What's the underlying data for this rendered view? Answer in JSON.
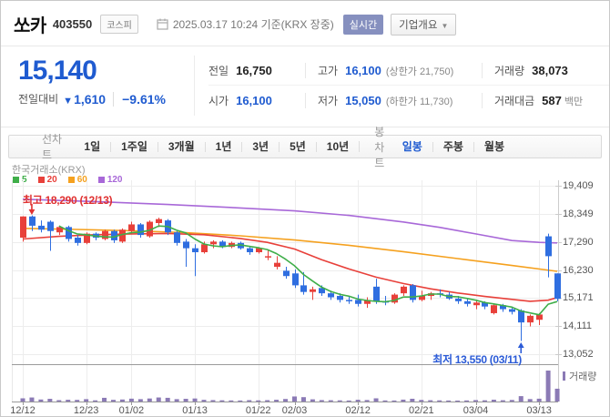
{
  "theme": {
    "accent_blue": "#1f5bd0",
    "badge_blue": "#8690bf",
    "anno_red": "#e03131",
    "anno_blue": "#2b5bd7"
  },
  "header": {
    "title": "쏘카",
    "code": "403550",
    "market_badge": "코스피",
    "timestamp": "2025.03.17 10:24",
    "timestamp_suffix": "기준(KRX 장중)",
    "realtime_badge": "실시간",
    "overview_button": "기업개요",
    "overview_arrow": "▼"
  },
  "quote": {
    "price": "15,140",
    "change_label": "전일대비",
    "change_arrow": "▼",
    "change_value": "1,610",
    "change_percent": "−9.61%"
  },
  "info": {
    "rows": [
      [
        {
          "label": "전일",
          "value": "16,750",
          "value_class": "dark"
        },
        {
          "label": "고가",
          "value": "16,100",
          "value_class": "blue",
          "extra": "(상한가 21,750)"
        },
        {
          "label": "거래량",
          "value": "38,073",
          "value_class": "dark"
        }
      ],
      [
        {
          "label": "시가",
          "value": "16,100",
          "value_class": "blue"
        },
        {
          "label": "저가",
          "value": "15,050",
          "value_class": "blue",
          "extra": "(하한가 11,730)"
        },
        {
          "label": "거래대금",
          "value": "587",
          "value_class": "dark",
          "unit": "백만"
        }
      ]
    ]
  },
  "toolbar": {
    "left_label": "선차트",
    "left_items": [
      "1일",
      "1주일",
      "3개월",
      "1년",
      "3년",
      "5년",
      "10년"
    ],
    "right_label": "봉차트",
    "right_items": [
      {
        "label": "일봉",
        "selected": true
      },
      {
        "label": "주봉",
        "selected": false
      },
      {
        "label": "월봉",
        "selected": false
      }
    ]
  },
  "chart_data": {
    "type": "candlestick",
    "source": "한국거래소(KRX)",
    "ma_legend": [
      {
        "label": "5",
        "color": "#3fae49"
      },
      {
        "label": "20",
        "color": "#e8403a"
      },
      {
        "label": "60",
        "color": "#f5a11f"
      },
      {
        "label": "120",
        "color": "#a868d8"
      }
    ],
    "ylim": [
      13052,
      19409
    ],
    "y_ticks": [
      {
        "label": "19,409",
        "value": 19409
      },
      {
        "label": "18,349",
        "value": 18349
      },
      {
        "label": "17,290",
        "value": 17290
      },
      {
        "label": "16,230",
        "value": 16230
      },
      {
        "label": "15,171",
        "value": 15171
      },
      {
        "label": "14,111",
        "value": 14111
      },
      {
        "label": "13,052",
        "value": 13052
      }
    ],
    "x_ticks": [
      {
        "label": "12/12",
        "candle_index": 0
      },
      {
        "label": "12/23",
        "candle_index": 7
      },
      {
        "label": "01/02",
        "candle_index": 12
      },
      {
        "label": "01/13",
        "candle_index": 19
      },
      {
        "label": "01/22",
        "candle_index": 26
      },
      {
        "label": "02/03",
        "candle_index": 30
      },
      {
        "label": "02/12",
        "candle_index": 37
      },
      {
        "label": "02/21",
        "candle_index": 44
      },
      {
        "label": "03/04",
        "candle_index": 50
      },
      {
        "label": "03/13",
        "candle_index": 57
      }
    ],
    "candles": [
      [
        "12/12",
        17450,
        18260,
        17300,
        18250,
        9500
      ],
      [
        "12/13",
        18250,
        18290,
        17700,
        17900,
        12000
      ],
      [
        "12/16",
        17900,
        18100,
        17650,
        17750,
        6000
      ],
      [
        "12/17",
        18050,
        18100,
        16950,
        17700,
        8000
      ],
      [
        "12/18",
        17650,
        17900,
        17550,
        17850,
        4000
      ],
      [
        "12/19",
        17850,
        17900,
        17300,
        17400,
        5200
      ],
      [
        "12/20",
        17450,
        17550,
        17150,
        17250,
        4800
      ],
      [
        "12/23",
        17250,
        17650,
        17200,
        17600,
        7000
      ],
      [
        "12/24",
        17600,
        17650,
        17350,
        17450,
        3500
      ],
      [
        "12/26",
        17400,
        17750,
        17350,
        17700,
        11000
      ],
      [
        "12/27",
        17700,
        17750,
        17250,
        17350,
        5000
      ],
      [
        "12/30",
        17300,
        17800,
        17250,
        17750,
        6000
      ],
      [
        "01/02",
        17700,
        18050,
        17600,
        17950,
        8500
      ],
      [
        "01/03",
        17950,
        18000,
        17450,
        17550,
        7000
      ],
      [
        "01/06",
        17500,
        18100,
        17450,
        18050,
        9000
      ],
      [
        "01/07",
        18000,
        18200,
        17850,
        18150,
        12000
      ],
      [
        "01/08",
        18100,
        18150,
        17550,
        17650,
        11000
      ],
      [
        "01/09",
        17650,
        17700,
        17150,
        17250,
        7000
      ],
      [
        "01/10",
        17300,
        17400,
        16350,
        17050,
        8000
      ],
      [
        "01/13",
        17050,
        17200,
        16000,
        16900,
        9000
      ],
      [
        "01/14",
        16900,
        17300,
        16850,
        17200,
        5000
      ],
      [
        "01/15",
        17200,
        17350,
        17050,
        17300,
        4200
      ],
      [
        "01/16",
        17300,
        17350,
        17050,
        17100,
        3600
      ],
      [
        "01/17",
        17100,
        17300,
        17050,
        17250,
        3200
      ],
      [
        "01/20",
        17250,
        17300,
        17000,
        17050,
        3000
      ],
      [
        "01/21",
        17050,
        17100,
        16800,
        16900,
        4000
      ],
      [
        "01/22",
        16900,
        17100,
        16850,
        17050,
        3400
      ],
      [
        "01/23",
        16700,
        17000,
        16600,
        16750,
        4000
      ],
      [
        "01/24",
        16350,
        16750,
        16250,
        16500,
        5200
      ],
      [
        "01/31",
        16200,
        16350,
        15900,
        16000,
        7500
      ],
      [
        "02/03",
        16100,
        16250,
        15550,
        15650,
        15000
      ],
      [
        "02/04",
        15650,
        16150,
        15300,
        15400,
        13000
      ],
      [
        "02/05",
        15400,
        15600,
        15100,
        15500,
        6500
      ],
      [
        "02/06",
        15550,
        15650,
        15250,
        15350,
        4200
      ],
      [
        "02/07",
        15350,
        15450,
        15100,
        15200,
        3800
      ],
      [
        "02/10",
        15250,
        15350,
        15000,
        15100,
        3400
      ],
      [
        "02/11",
        15100,
        15250,
        14950,
        15050,
        3000
      ],
      [
        "02/12",
        15100,
        15300,
        14850,
        14950,
        5200
      ],
      [
        "02/13",
        14950,
        15200,
        14800,
        15100,
        4400
      ],
      [
        "02/14",
        15600,
        15900,
        14950,
        15050,
        9500
      ],
      [
        "02/17",
        15050,
        15250,
        14900,
        15000,
        3200
      ],
      [
        "02/18",
        15000,
        15350,
        14950,
        15300,
        3000
      ],
      [
        "02/19",
        15350,
        15650,
        15250,
        15600,
        5600
      ],
      [
        "02/20",
        15650,
        15700,
        15000,
        15100,
        8200
      ],
      [
        "02/21",
        15100,
        15450,
        15050,
        15250,
        4600
      ],
      [
        "02/24",
        15250,
        15400,
        15100,
        15350,
        3800
      ],
      [
        "02/25",
        15350,
        15500,
        15200,
        15300,
        3400
      ],
      [
        "02/26",
        15300,
        15400,
        15100,
        15150,
        3000
      ],
      [
        "02/27",
        15150,
        15250,
        14950,
        15050,
        2800
      ],
      [
        "02/28",
        15050,
        15150,
        14850,
        14950,
        3200
      ],
      [
        "03/04",
        14900,
        15100,
        14750,
        15000,
        4200
      ],
      [
        "03/05",
        15000,
        15050,
        14750,
        14850,
        3600
      ],
      [
        "03/06",
        14600,
        14950,
        14550,
        14900,
        5400
      ],
      [
        "03/07",
        14900,
        14950,
        14650,
        14750,
        3800
      ],
      [
        "03/10",
        14750,
        14850,
        14550,
        14650,
        4600
      ],
      [
        "03/11",
        14700,
        14750,
        13550,
        14250,
        16000
      ],
      [
        "03/12",
        14250,
        14550,
        14100,
        14500,
        7200
      ],
      [
        "03/13",
        14350,
        14600,
        14150,
        14550,
        8400
      ],
      [
        "03/14",
        17500,
        17600,
        15950,
        16750,
        92000
      ],
      [
        "03/17",
        16100,
        16100,
        15050,
        15140,
        38073
      ]
    ],
    "ma5_period": 5,
    "ma_lines": {
      "ma20": [
        [
          0,
          17400
        ],
        [
          4,
          17500
        ],
        [
          8,
          17560
        ],
        [
          12,
          17590
        ],
        [
          16,
          17610
        ],
        [
          20,
          17560
        ],
        [
          24,
          17420
        ],
        [
          27,
          17270
        ],
        [
          30,
          17020
        ],
        [
          33,
          16620
        ],
        [
          36,
          16270
        ],
        [
          39,
          15960
        ],
        [
          42,
          15720
        ],
        [
          45,
          15520
        ],
        [
          48,
          15360
        ],
        [
          51,
          15230
        ],
        [
          54,
          15120
        ],
        [
          56,
          15050
        ],
        [
          58,
          15090
        ],
        [
          59,
          15190
        ]
      ],
      "ma60": [
        [
          0,
          17800
        ],
        [
          6,
          17760
        ],
        [
          12,
          17710
        ],
        [
          18,
          17640
        ],
        [
          24,
          17520
        ],
        [
          30,
          17360
        ],
        [
          36,
          17160
        ],
        [
          42,
          16920
        ],
        [
          48,
          16660
        ],
        [
          54,
          16400
        ],
        [
          59,
          16180
        ]
      ],
      "ma120": [
        [
          0,
          18900
        ],
        [
          8,
          18810
        ],
        [
          16,
          18700
        ],
        [
          24,
          18570
        ],
        [
          30,
          18460
        ],
        [
          36,
          18290
        ],
        [
          42,
          18040
        ],
        [
          46,
          17840
        ],
        [
          50,
          17590
        ],
        [
          54,
          17340
        ],
        [
          57,
          17270
        ],
        [
          59,
          17250
        ]
      ]
    },
    "annotations": {
      "high": {
        "text": "최고 18,290 (12/13)",
        "candle_index": 1,
        "price": 18290
      },
      "low": {
        "text": "최저 13,550 (03/11)",
        "candle_index": 55,
        "price": 13550
      }
    },
    "volume_legend": "거래량",
    "colors": {
      "up": "#e8403a",
      "down": "#2f6ee0",
      "volume": "#8b7ab5",
      "grid": "#ededed",
      "axis": "#999"
    }
  }
}
